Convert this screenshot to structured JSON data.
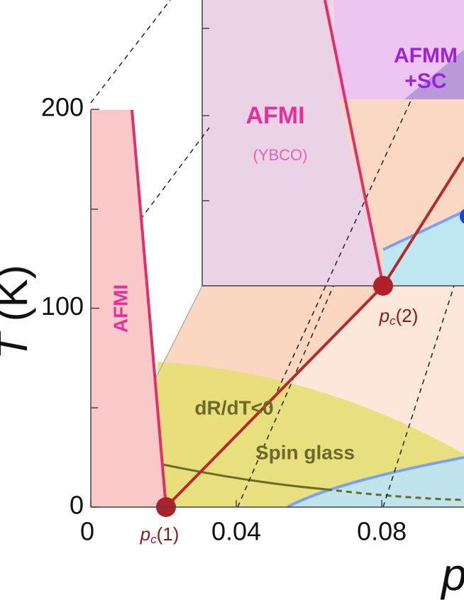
{
  "chart_data": {
    "type": "phase-diagram",
    "y_label": {
      "italic": "T",
      "rest": " (K)"
    },
    "x_label": "p",
    "xlim": [
      0,
      0.1026
    ],
    "ylim": [
      0,
      255
    ],
    "xticks": [
      0,
      0.04,
      0.08
    ],
    "yticks": [
      0,
      100,
      200
    ],
    "annotations": {
      "afmi_back": "AFMI",
      "ybco": "(YBCO)",
      "afmm": "AFMM",
      "sc": "+SC",
      "afmi_left": "AFMI",
      "drdt": "dR/dT<0",
      "spin_glass": "Spin glass",
      "pc1": {
        "p": "p",
        "sub": "c",
        "rest": "(1)"
      },
      "pc2": {
        "p": "p",
        "sub": "c",
        "rest": "(2)"
      }
    }
  }
}
